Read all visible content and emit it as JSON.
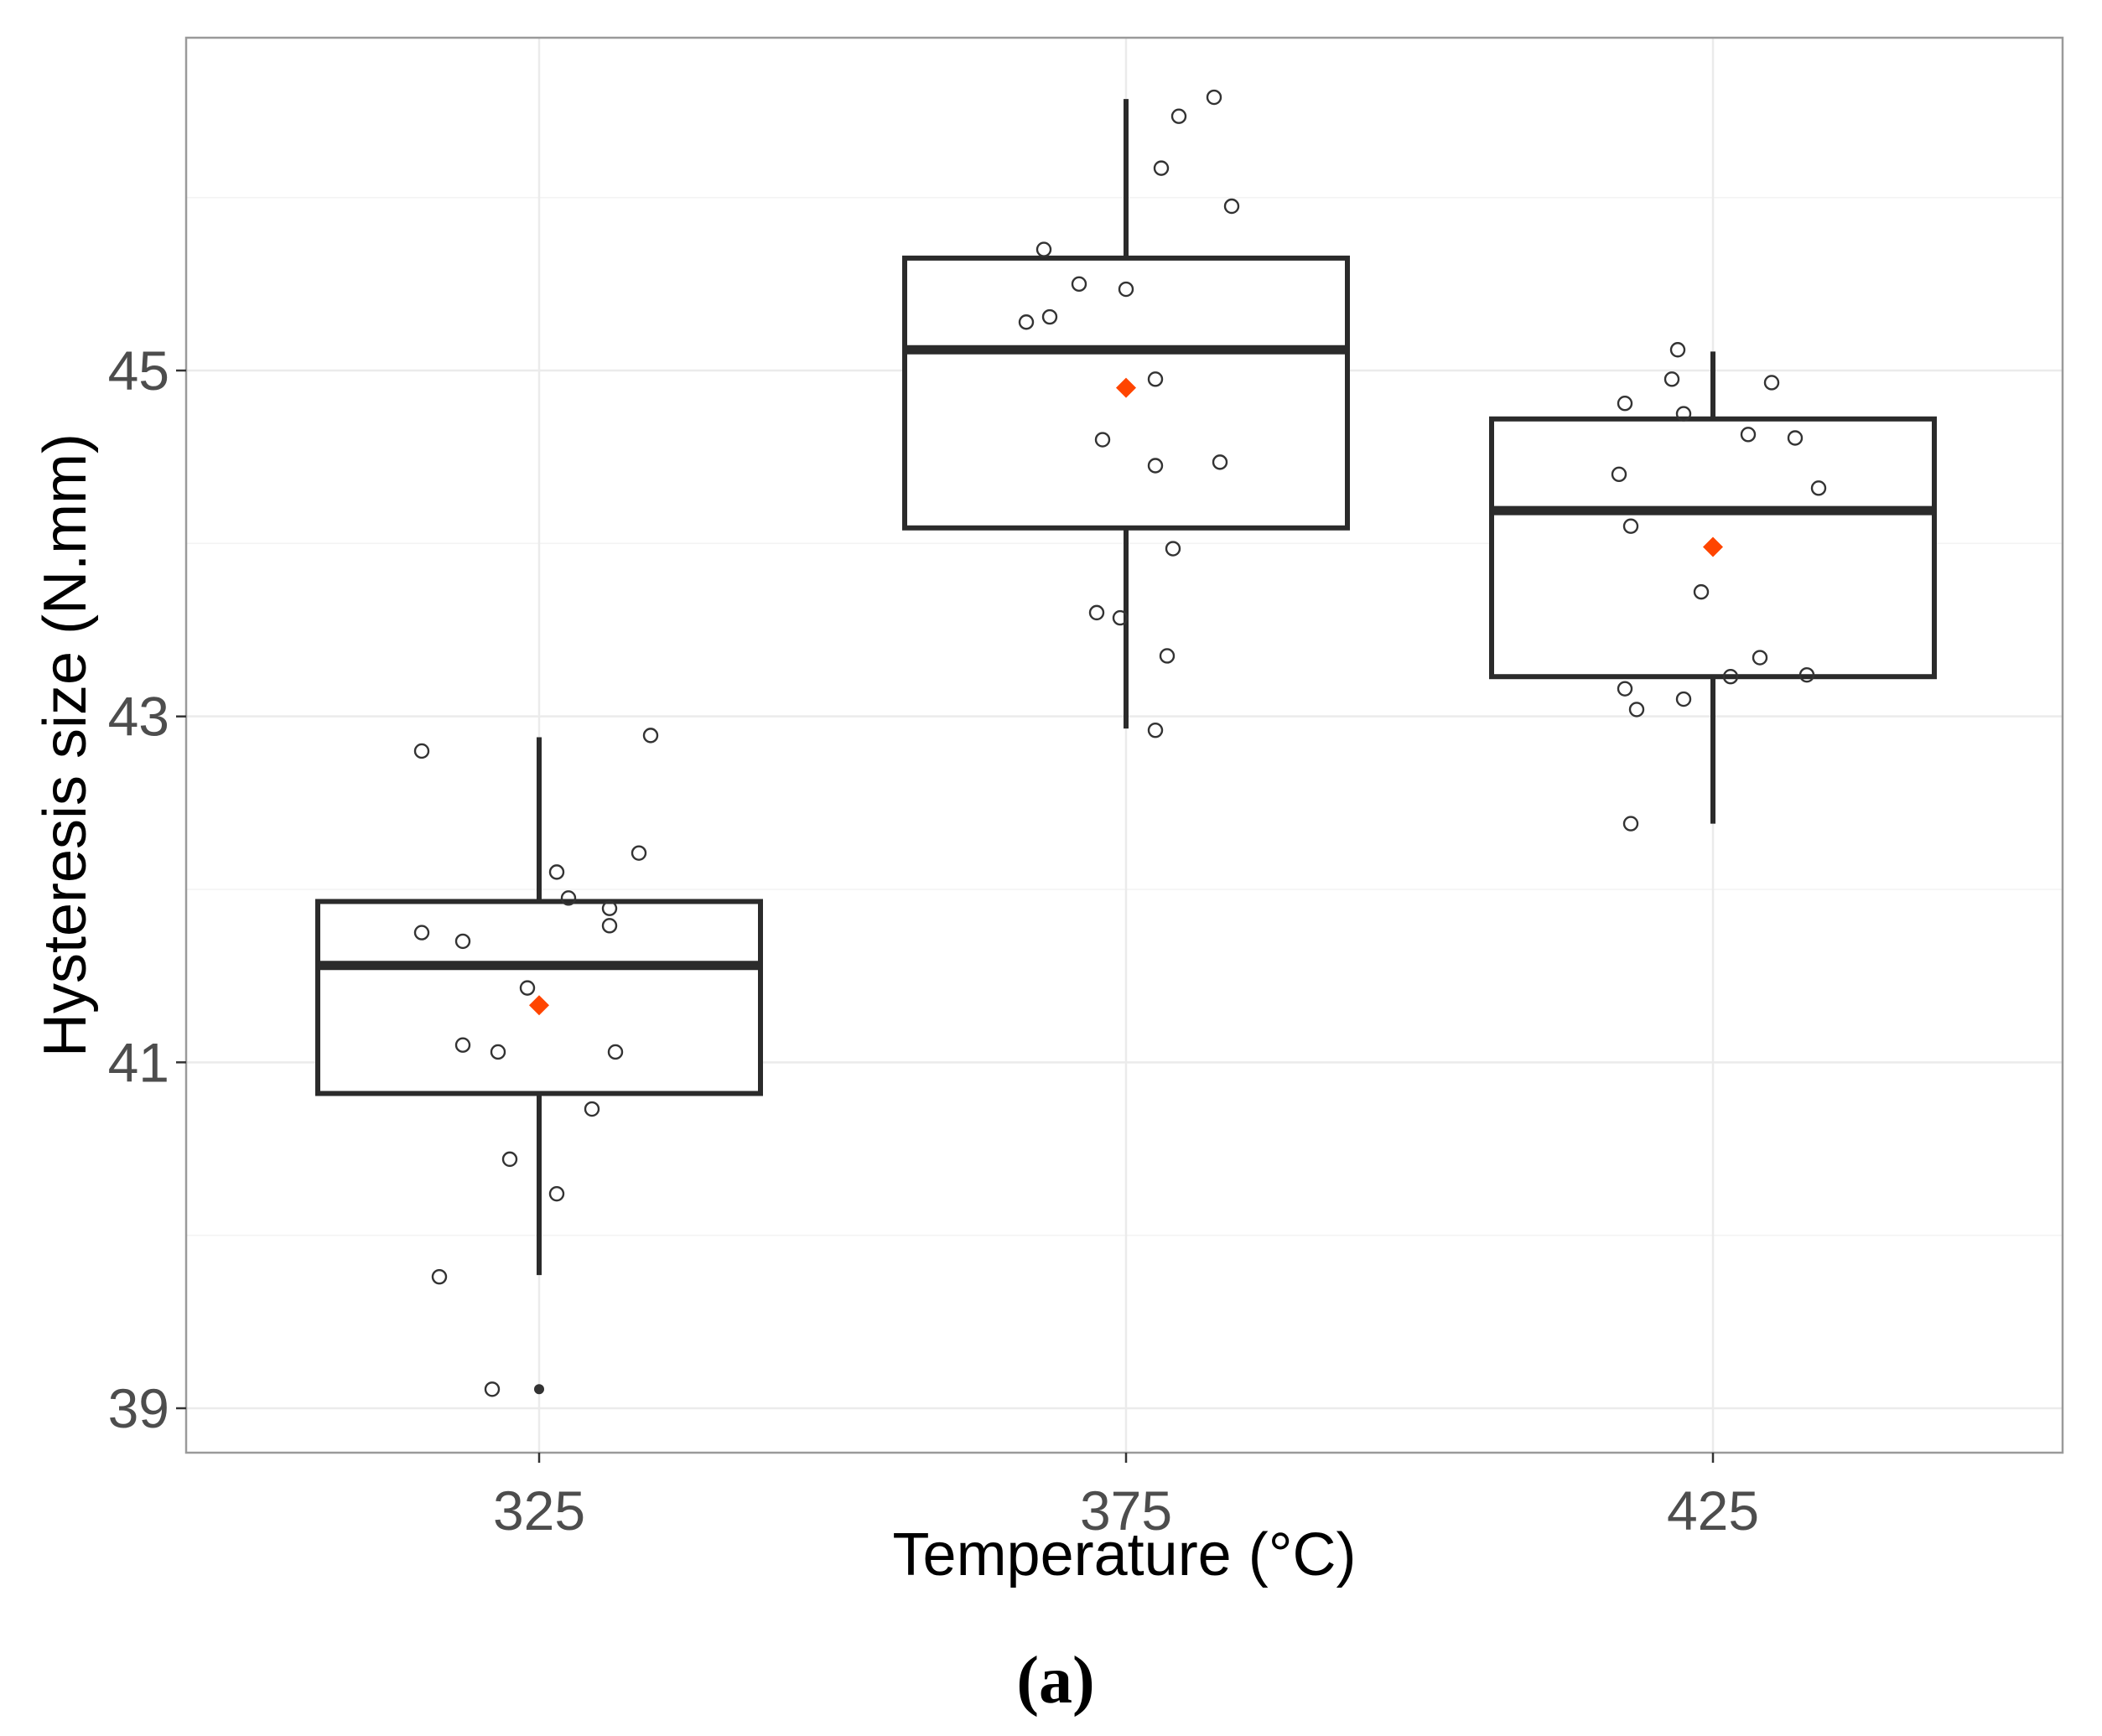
{
  "chart_data": {
    "type": "box",
    "xlabel": "Temperature (°C)",
    "ylabel": "Hysteresis size (N.mm)",
    "panel_label": "(a)",
    "categories": [
      "325",
      "375",
      "425"
    ],
    "ylim": [
      38.8,
      47.0
    ],
    "y_ticks": [
      39,
      41,
      43,
      45
    ],
    "y_minor_ticks": [
      40,
      42,
      44,
      46
    ],
    "colors": {
      "mean": "#ff4500",
      "box": "#2b2b2b",
      "points": "#333333"
    },
    "groups": [
      {
        "category": "325",
        "q1": 40.82,
        "median": 41.56,
        "q3": 41.93,
        "whisker_low": 39.77,
        "whisker_high": 42.88,
        "mean": 41.33,
        "outliers": [
          39.11
        ],
        "points": [
          {
            "jitter": -0.2,
            "y": 42.8
          },
          {
            "jitter": 0.19,
            "y": 42.89
          },
          {
            "jitter": 0.03,
            "y": 42.1
          },
          {
            "jitter": 0.17,
            "y": 42.21
          },
          {
            "jitter": 0.05,
            "y": 41.95
          },
          {
            "jitter": 0.12,
            "y": 41.89
          },
          {
            "jitter": 0.12,
            "y": 41.79
          },
          {
            "jitter": -0.2,
            "y": 41.75
          },
          {
            "jitter": -0.13,
            "y": 41.7
          },
          {
            "jitter": -0.02,
            "y": 41.43
          },
          {
            "jitter": -0.13,
            "y": 41.1
          },
          {
            "jitter": -0.07,
            "y": 41.06
          },
          {
            "jitter": 0.13,
            "y": 41.06
          },
          {
            "jitter": 0.09,
            "y": 40.73
          },
          {
            "jitter": -0.05,
            "y": 40.44
          },
          {
            "jitter": 0.03,
            "y": 40.24
          },
          {
            "jitter": -0.17,
            "y": 39.76
          },
          {
            "jitter": -0.08,
            "y": 39.11
          }
        ]
      },
      {
        "category": "375",
        "q1": 44.09,
        "median": 45.12,
        "q3": 45.65,
        "whisker_low": 42.93,
        "whisker_high": 46.57,
        "mean": 44.9,
        "outliers": [],
        "points": [
          {
            "jitter": 0.15,
            "y": 46.58
          },
          {
            "jitter": 0.09,
            "y": 46.47
          },
          {
            "jitter": 0.06,
            "y": 46.17
          },
          {
            "jitter": 0.18,
            "y": 45.95
          },
          {
            "jitter": -0.14,
            "y": 45.7
          },
          {
            "jitter": -0.08,
            "y": 45.5
          },
          {
            "jitter": 0.0,
            "y": 45.47
          },
          {
            "jitter": -0.13,
            "y": 45.31
          },
          {
            "jitter": -0.17,
            "y": 45.28
          },
          {
            "jitter": 0.05,
            "y": 44.95
          },
          {
            "jitter": -0.04,
            "y": 44.6
          },
          {
            "jitter": 0.05,
            "y": 44.45
          },
          {
            "jitter": 0.16,
            "y": 44.47
          },
          {
            "jitter": 0.08,
            "y": 43.97
          },
          {
            "jitter": -0.05,
            "y": 43.6
          },
          {
            "jitter": -0.01,
            "y": 43.57
          },
          {
            "jitter": 0.07,
            "y": 43.35
          },
          {
            "jitter": 0.05,
            "y": 42.92
          }
        ]
      },
      {
        "category": "425",
        "q1": 43.23,
        "median": 44.19,
        "q3": 44.72,
        "whisker_low": 42.38,
        "whisker_high": 45.11,
        "mean": 43.98,
        "outliers": [],
        "points": [
          {
            "jitter": -0.06,
            "y": 45.12
          },
          {
            "jitter": -0.07,
            "y": 44.95
          },
          {
            "jitter": 0.1,
            "y": 44.93
          },
          {
            "jitter": -0.15,
            "y": 44.81
          },
          {
            "jitter": -0.05,
            "y": 44.75
          },
          {
            "jitter": 0.06,
            "y": 44.63
          },
          {
            "jitter": 0.14,
            "y": 44.61
          },
          {
            "jitter": -0.16,
            "y": 44.4
          },
          {
            "jitter": 0.18,
            "y": 44.32
          },
          {
            "jitter": -0.14,
            "y": 44.1
          },
          {
            "jitter": -0.02,
            "y": 43.72
          },
          {
            "jitter": 0.08,
            "y": 43.34
          },
          {
            "jitter": 0.03,
            "y": 43.23
          },
          {
            "jitter": 0.16,
            "y": 43.24
          },
          {
            "jitter": -0.15,
            "y": 43.16
          },
          {
            "jitter": -0.05,
            "y": 43.1
          },
          {
            "jitter": -0.13,
            "y": 43.04
          },
          {
            "jitter": -0.14,
            "y": 42.38
          }
        ]
      }
    ]
  }
}
